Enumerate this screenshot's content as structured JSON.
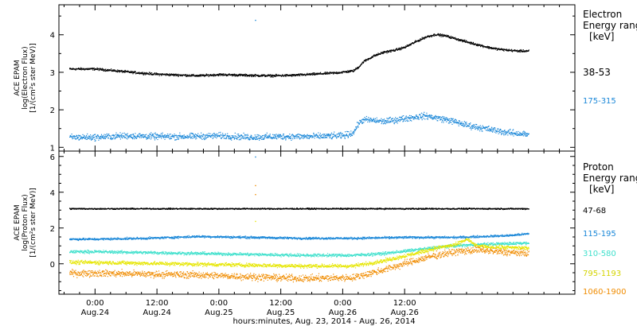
{
  "chart_data": [
    {
      "type": "scatter",
      "panel": "electron",
      "ylabel_lines": [
        "ACE EPAM",
        "log(Electron Flux)",
        "[1/(cm²s ster MeV)]"
      ],
      "legend_title": [
        "Electron",
        "Energy range",
        "[keV]"
      ],
      "ylim": [
        0.9,
        4.8
      ],
      "yticks": [
        1,
        2,
        3,
        4
      ],
      "series": [
        {
          "name": "38-53",
          "color": "#000000",
          "anchors": [
            [
              0,
              3.1
            ],
            [
              4,
              3.05
            ],
            [
              8,
              3.0
            ],
            [
              12,
              2.96
            ],
            [
              16,
              2.94
            ],
            [
              20,
              2.92
            ],
            [
              24,
              2.95
            ],
            [
              30,
              2.93
            ],
            [
              34,
              2.92
            ],
            [
              38,
              2.93
            ],
            [
              42,
              2.96
            ],
            [
              47,
              3.0
            ],
            [
              50,
              3.05
            ],
            [
              51,
              3.15
            ],
            [
              52,
              3.3
            ],
            [
              54,
              3.45
            ],
            [
              56,
              3.55
            ],
            [
              58,
              3.6
            ],
            [
              60,
              3.68
            ],
            [
              62,
              3.82
            ],
            [
              64,
              3.95
            ],
            [
              66,
              4.02
            ],
            [
              68,
              3.98
            ],
            [
              70,
              3.9
            ],
            [
              72,
              3.82
            ],
            [
              74,
              3.75
            ],
            [
              76,
              3.68
            ],
            [
              78,
              3.63
            ],
            [
              80,
              3.6
            ],
            [
              82,
              3.58
            ],
            [
              84,
              3.58
            ]
          ],
          "noise": 0.025
        },
        {
          "name": "175-315",
          "color": "#1a87d8",
          "anchors": [
            [
              0,
              1.28
            ],
            [
              6,
              1.32
            ],
            [
              12,
              1.3
            ],
            [
              18,
              1.3
            ],
            [
              24,
              1.32
            ],
            [
              30,
              1.28
            ],
            [
              36,
              1.3
            ],
            [
              42,
              1.3
            ],
            [
              48,
              1.32
            ],
            [
              50,
              1.4
            ],
            [
              51,
              1.65
            ],
            [
              52,
              1.75
            ],
            [
              56,
              1.7
            ],
            [
              60,
              1.78
            ],
            [
              62,
              1.82
            ],
            [
              64,
              1.85
            ],
            [
              66,
              1.8
            ],
            [
              68,
              1.75
            ],
            [
              70,
              1.68
            ],
            [
              72,
              1.6
            ],
            [
              74,
              1.55
            ],
            [
              76,
              1.5
            ],
            [
              78,
              1.45
            ],
            [
              80,
              1.4
            ],
            [
              82,
              1.38
            ],
            [
              84,
              1.35
            ]
          ],
          "noise": 0.07
        }
      ],
      "spikes": [
        {
          "x": 31,
          "y": 4.4,
          "color": "#1a87d8"
        }
      ]
    },
    {
      "type": "scatter",
      "panel": "proton",
      "ylabel_lines": [
        "ACE EPAM",
        "log(Proton Flux)",
        "[1/(cm²s ster MeV)]"
      ],
      "legend_title": [
        "Proton",
        "Energy range",
        "[keV]"
      ],
      "ylim": [
        -1.7,
        6.3
      ],
      "yticks": [
        0,
        2,
        4,
        6
      ],
      "series": [
        {
          "name": "47-68",
          "color": "#000000",
          "anchors": [
            [
              0,
              3.1
            ],
            [
              84,
              3.1
            ]
          ],
          "noise": 0.03
        },
        {
          "name": "115-195",
          "color": "#1a87d8",
          "anchors": [
            [
              0,
              1.4
            ],
            [
              10,
              1.45
            ],
            [
              20,
              1.55
            ],
            [
              30,
              1.5
            ],
            [
              40,
              1.45
            ],
            [
              50,
              1.45
            ],
            [
              60,
              1.5
            ],
            [
              70,
              1.5
            ],
            [
              80,
              1.6
            ],
            [
              84,
              1.7
            ]
          ],
          "noise": 0.05
        },
        {
          "name": "310-580",
          "color": "#3fe0cc",
          "anchors": [
            [
              0,
              0.7
            ],
            [
              10,
              0.65
            ],
            [
              20,
              0.6
            ],
            [
              30,
              0.55
            ],
            [
              40,
              0.5
            ],
            [
              50,
              0.5
            ],
            [
              56,
              0.6
            ],
            [
              62,
              0.8
            ],
            [
              68,
              1.0
            ],
            [
              74,
              1.1
            ],
            [
              80,
              1.15
            ],
            [
              84,
              1.2
            ]
          ],
          "noise": 0.07
        },
        {
          "name": "795-1193",
          "color": "#e6e600",
          "anchors": [
            [
              0,
              0.1
            ],
            [
              10,
              0.05
            ],
            [
              20,
              0.0
            ],
            [
              30,
              -0.05
            ],
            [
              40,
              -0.1
            ],
            [
              50,
              -0.1
            ],
            [
              56,
              0.2
            ],
            [
              62,
              0.6
            ],
            [
              66,
              0.9
            ],
            [
              70,
              1.1
            ],
            [
              72,
              1.4
            ],
            [
              74,
              1.0
            ],
            [
              78,
              0.95
            ],
            [
              84,
              0.9
            ]
          ],
          "noise": 0.09
        },
        {
          "name": "1060-1900",
          "color": "#f08c00",
          "anchors": [
            [
              0,
              -0.5
            ],
            [
              10,
              -0.55
            ],
            [
              20,
              -0.6
            ],
            [
              30,
              -0.7
            ],
            [
              40,
              -0.8
            ],
            [
              50,
              -0.75
            ],
            [
              56,
              -0.3
            ],
            [
              62,
              0.2
            ],
            [
              66,
              0.5
            ],
            [
              70,
              0.7
            ],
            [
              74,
              0.8
            ],
            [
              78,
              0.7
            ],
            [
              84,
              0.6
            ]
          ],
          "noise": 0.16
        }
      ],
      "spikes": [
        {
          "x": 31,
          "y": 6.0,
          "color": "#1a87d8"
        },
        {
          "x": 31,
          "y": 4.4,
          "color": "#f08c00"
        },
        {
          "x": 31,
          "y": 3.9,
          "color": "#f08c00"
        },
        {
          "x": 31,
          "y": 2.4,
          "color": "#e6e600"
        }
      ]
    }
  ],
  "x_axis": {
    "xlim": [
      -7,
      93
    ],
    "ticks": [
      {
        "x": 0,
        "line1": "0:00",
        "line2": "Aug.24"
      },
      {
        "x": 12,
        "line1": "12:00",
        "line2": "Aug.24"
      },
      {
        "x": 24,
        "line1": "0:00",
        "line2": "Aug.25"
      },
      {
        "x": 36,
        "line1": "12:00",
        "line2": "Aug.25"
      },
      {
        "x": 48,
        "line1": "0:00",
        "line2": "Aug.26"
      },
      {
        "x": 60,
        "line1": "12:00",
        "line2": "Aug.26"
      }
    ],
    "xlabel": "hours:minutes, Aug. 23, 2014 - Aug. 26, 2014"
  }
}
